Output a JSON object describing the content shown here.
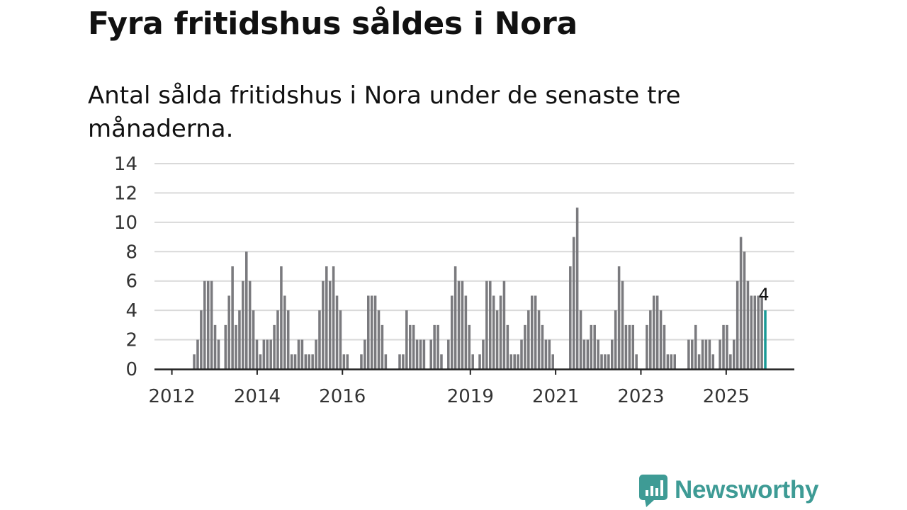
{
  "header": {
    "title": "Fyra fritidshus såldes i Nora",
    "subtitle": "Antal sålda fritidshus i Nora under de senaste tre månaderna."
  },
  "brand": {
    "name": "Newsworthy",
    "icon": "newsworthy-logo-icon"
  },
  "colors": {
    "bar": "#7a7a7e",
    "highlight": "#1a9a96",
    "grid": "#d9d9d9",
    "axis": "#222222"
  },
  "chart_data": {
    "type": "bar",
    "title": "Fyra fritidshus såldes i Nora",
    "subtitle": "Antal sålda fritidshus i Nora under de senaste tre månaderna.",
    "xlabel": "",
    "ylabel": "",
    "ylim": [
      0,
      14
    ],
    "yticks": [
      0,
      2,
      4,
      6,
      8,
      10,
      12,
      14
    ],
    "x_start": 2011.625,
    "x_end": 2025.917,
    "bar_step_months": 1,
    "xticks": [
      {
        "year": 2012,
        "label": "2012"
      },
      {
        "year": 2014,
        "label": "2014"
      },
      {
        "year": 2016,
        "label": "2016"
      },
      {
        "year": 2019,
        "label": "2019"
      },
      {
        "year": 2021,
        "label": "2021"
      },
      {
        "year": 2023,
        "label": "2023"
      },
      {
        "year": 2025,
        "label": "2025"
      }
    ],
    "grid": true,
    "highlight_last": true,
    "last_label": "4",
    "values": [
      0,
      0,
      0,
      0,
      0,
      0,
      0,
      0,
      0,
      0,
      0,
      1,
      2,
      4,
      6,
      6,
      6,
      3,
      2,
      0,
      3,
      5,
      7,
      3,
      4,
      6,
      8,
      6,
      4,
      2,
      1,
      2,
      2,
      2,
      3,
      4,
      7,
      5,
      4,
      1,
      1,
      2,
      2,
      1,
      1,
      1,
      2,
      4,
      6,
      7,
      6,
      7,
      5,
      4,
      1,
      1,
      0,
      0,
      0,
      1,
      2,
      5,
      5,
      5,
      4,
      3,
      1,
      0,
      0,
      0,
      1,
      1,
      4,
      3,
      3,
      2,
      2,
      2,
      0,
      2,
      3,
      3,
      1,
      0,
      2,
      5,
      7,
      6,
      6,
      5,
      3,
      1,
      0,
      1,
      2,
      6,
      6,
      5,
      4,
      5,
      6,
      3,
      1,
      1,
      1,
      2,
      3,
      4,
      5,
      5,
      4,
      3,
      2,
      2,
      1,
      0,
      0,
      0,
      0,
      7,
      9,
      11,
      4,
      2,
      2,
      3,
      3,
      2,
      1,
      1,
      1,
      2,
      4,
      7,
      6,
      3,
      3,
      3,
      1,
      0,
      0,
      3,
      4,
      5,
      5,
      4,
      3,
      1,
      1,
      1,
      0,
      0,
      0,
      2,
      2,
      3,
      1,
      2,
      2,
      2,
      1,
      0,
      2,
      3,
      3,
      1,
      2,
      6,
      9,
      8,
      6,
      5,
      5,
      5,
      5,
      4
    ]
  }
}
